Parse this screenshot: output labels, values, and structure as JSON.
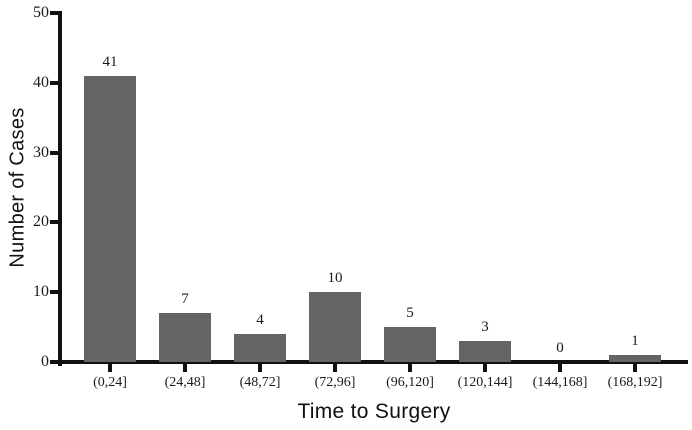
{
  "chart_data": {
    "type": "bar",
    "title": "",
    "xlabel": "Time to Surgery",
    "ylabel": "Number of Cases",
    "categories": [
      "(0,24]",
      "(24,48]",
      "(48,72]",
      "(72,96]",
      "(96,120]",
      "(120,144]",
      "(144,168]",
      "(168,192]"
    ],
    "values": [
      41,
      7,
      4,
      10,
      5,
      3,
      0,
      1
    ],
    "ylim": [
      0,
      50
    ],
    "yticks": [
      0,
      10,
      20,
      30,
      40,
      50
    ],
    "grid": false,
    "legend": "none",
    "data_labels": true,
    "bar_color": "#636466",
    "axis_color": "#111111",
    "text_color": "#1a1a1a",
    "background_color": "#ffffff"
  }
}
